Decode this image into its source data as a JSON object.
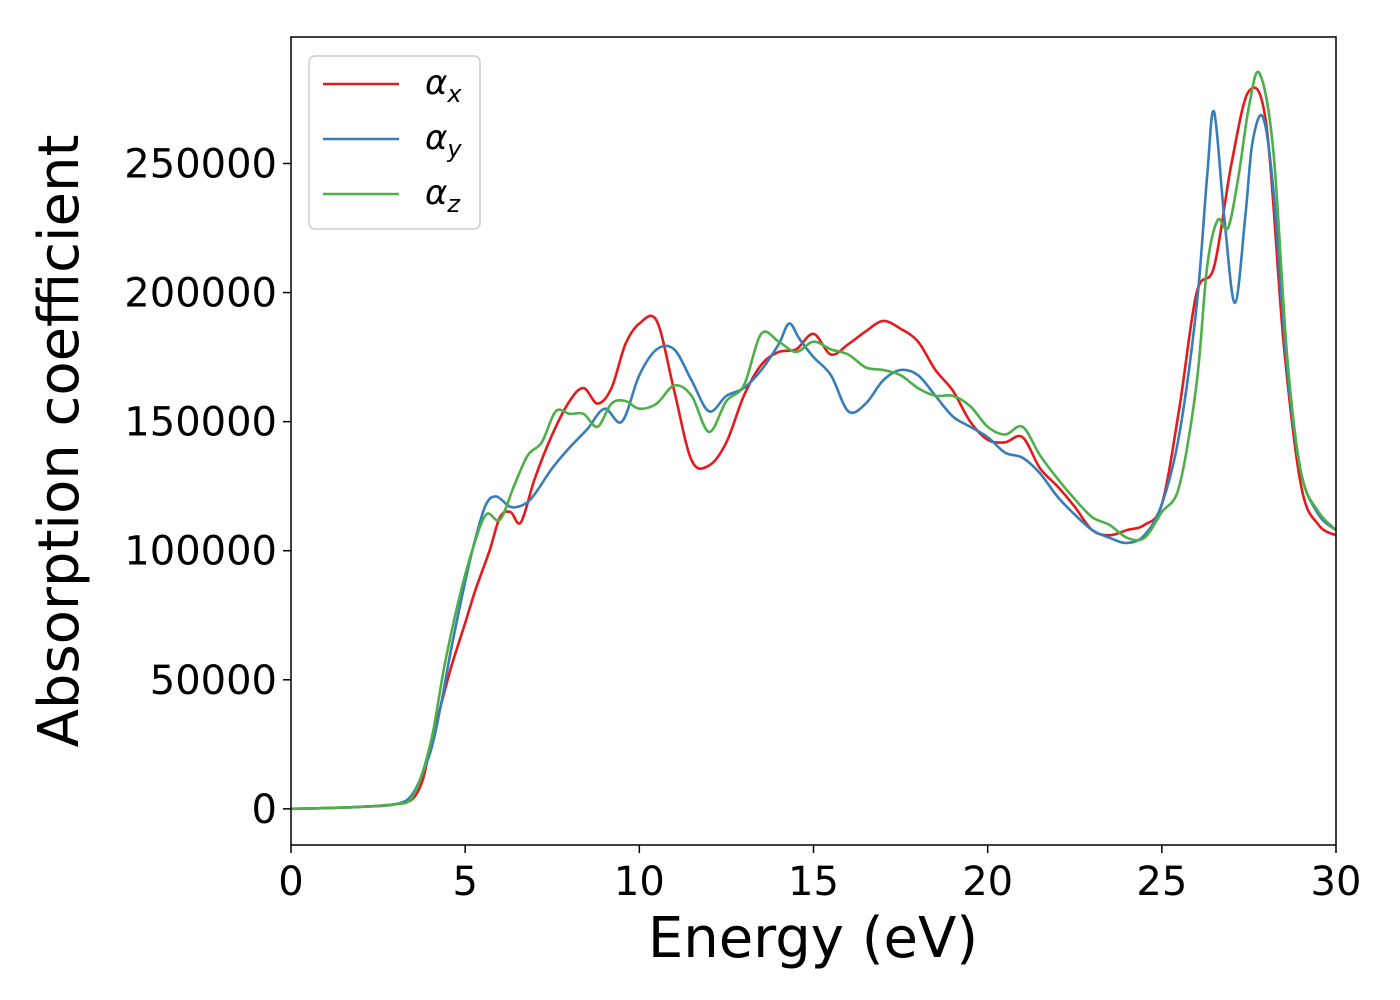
{
  "chart_data": {
    "type": "line",
    "xlabel": "Energy (eV)",
    "ylabel": "Absorption coefficient",
    "xlim": [
      0,
      30
    ],
    "ylim": [
      -14000,
      299000
    ],
    "xticks": [
      "0",
      "5",
      "10",
      "15",
      "20",
      "25",
      "30"
    ],
    "yticks": [
      "0",
      "50000",
      "100000",
      "150000",
      "200000",
      "250000"
    ],
    "grid": false,
    "legend_position": "top-left",
    "series": [
      {
        "name": "α",
        "subscript": "x",
        "color": "#e41a1c",
        "x": [
          0,
          1,
          2,
          3,
          3.5,
          3.8,
          4,
          4.3,
          4.6,
          5,
          5.3,
          5.7,
          6,
          6.3,
          6.6,
          7,
          7.5,
          8,
          8.4,
          8.8,
          9.2,
          9.6,
          10,
          10.5,
          11,
          11.5,
          12,
          12.5,
          13,
          13.5,
          14,
          14.5,
          15,
          15.5,
          16,
          16.5,
          17,
          17.5,
          18,
          18.5,
          19,
          19.5,
          20,
          20.5,
          21,
          21.5,
          22,
          22.5,
          23,
          23.5,
          24,
          24.5,
          25,
          25.5,
          26,
          26.5,
          27,
          27.5,
          28,
          28.5,
          29,
          29.5,
          30
        ],
        "y": [
          0,
          300,
          800,
          1800,
          4000,
          12000,
          25000,
          40000,
          55000,
          72000,
          85000,
          100000,
          113000,
          115000,
          111000,
          128000,
          145000,
          158000,
          163000,
          157000,
          163000,
          180000,
          188000,
          189000,
          162000,
          135000,
          133000,
          142000,
          160000,
          172000,
          177000,
          178000,
          184000,
          176000,
          180000,
          185000,
          189000,
          186000,
          181000,
          170000,
          162000,
          150000,
          143000,
          142000,
          144000,
          132000,
          125000,
          117000,
          108000,
          106000,
          108000,
          110000,
          118000,
          155000,
          200000,
          210000,
          250000,
          278000,
          265000,
          180000,
          125000,
          110000,
          106000
        ]
      },
      {
        "name": "α",
        "subscript": "y",
        "color": "#377eb8",
        "x": [
          0,
          1,
          2,
          3,
          3.5,
          4,
          4.3,
          4.6,
          5,
          5.3,
          5.6,
          5.9,
          6.3,
          6.7,
          7,
          7.5,
          8,
          8.5,
          9,
          9.5,
          10,
          10.5,
          11,
          11.5,
          12,
          12.5,
          13,
          13.5,
          14,
          14.3,
          14.6,
          15,
          15.5,
          16,
          16.5,
          17,
          17.5,
          18,
          18.5,
          19,
          19.5,
          20,
          20.5,
          21,
          21.5,
          22,
          22.5,
          23,
          23.5,
          24,
          24.5,
          25,
          25.5,
          26,
          26.3,
          26.5,
          26.8,
          27.1,
          27.4,
          27.6,
          27.9,
          28.2,
          28.6,
          29,
          29.5,
          30
        ],
        "y": [
          0,
          300,
          800,
          1800,
          6000,
          22000,
          40000,
          62000,
          88000,
          105000,
          118000,
          121000,
          117000,
          118000,
          122000,
          132000,
          140000,
          147000,
          155000,
          150000,
          168000,
          178000,
          178000,
          166000,
          154000,
          160000,
          163000,
          170000,
          180000,
          188000,
          182000,
          175000,
          168000,
          154000,
          157000,
          166000,
          170000,
          168000,
          160000,
          152000,
          148000,
          144000,
          138000,
          136000,
          130000,
          121000,
          114000,
          108000,
          105000,
          103000,
          106000,
          118000,
          145000,
          195000,
          245000,
          270000,
          228000,
          196000,
          230000,
          258000,
          268000,
          240000,
          170000,
          130000,
          114000,
          108000
        ]
      },
      {
        "name": "α",
        "subscript": "z",
        "color": "#4daf4a",
        "x": [
          0,
          1,
          2,
          3,
          3.5,
          4,
          4.4,
          4.8,
          5.2,
          5.6,
          6,
          6.4,
          6.8,
          7.2,
          7.6,
          8,
          8.4,
          8.8,
          9.2,
          9.6,
          10,
          10.5,
          11,
          11.5,
          12,
          12.5,
          13,
          13.5,
          14,
          14.5,
          15,
          15.5,
          16,
          16.5,
          17,
          17.5,
          18,
          18.5,
          19,
          19.5,
          20,
          20.5,
          21,
          21.5,
          22,
          22.5,
          23,
          23.5,
          24,
          24.5,
          25,
          25.5,
          26,
          26.3,
          26.6,
          26.9,
          27.2,
          27.5,
          27.8,
          28.2,
          28.6,
          29,
          29.5,
          30
        ],
        "y": [
          0,
          300,
          800,
          1800,
          5000,
          25000,
          55000,
          80000,
          100000,
          114000,
          112000,
          125000,
          137000,
          142000,
          154000,
          153000,
          153000,
          148000,
          157000,
          158000,
          155000,
          157000,
          164000,
          160000,
          146000,
          158000,
          164000,
          184000,
          181000,
          177000,
          181000,
          178000,
          176000,
          171000,
          170000,
          168000,
          163000,
          160000,
          160000,
          156000,
          148000,
          145000,
          148000,
          137000,
          128000,
          120000,
          113000,
          110000,
          105000,
          105000,
          115000,
          125000,
          165000,
          210000,
          228000,
          225000,
          245000,
          272000,
          285000,
          255000,
          175000,
          130000,
          115000,
          108000
        ]
      }
    ]
  }
}
